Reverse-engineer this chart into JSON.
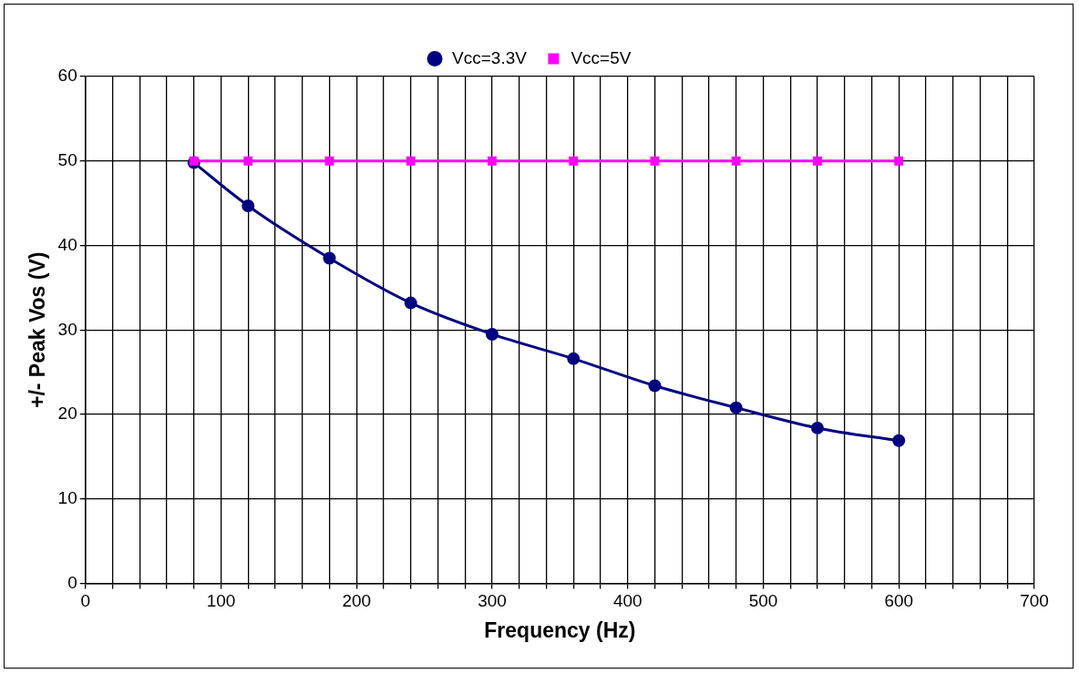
{
  "chart_data": {
    "type": "line",
    "xlabel": "Frequency (Hz)",
    "ylabel": "+/- Peak Vos (V)",
    "x": [
      80,
      120,
      180,
      240,
      300,
      360,
      420,
      480,
      540,
      600
    ],
    "series": [
      {
        "name": "Vcc=3.3V",
        "color": "#000080",
        "marker": "circle",
        "values": [
          49.8,
          44.7,
          38.5,
          33.2,
          29.5,
          26.6,
          23.4,
          20.8,
          18.4,
          16.9
        ]
      },
      {
        "name": "Vcc=5V",
        "color": "#ff00ff",
        "marker": "square",
        "values": [
          50,
          50,
          50,
          50,
          50,
          50,
          50,
          50,
          50,
          50
        ]
      }
    ],
    "xlim": [
      0,
      700
    ],
    "xticks": [
      0,
      {
        "value": 20,
        "label": null
      },
      {
        "value": 40,
        "label": null
      },
      {
        "value": 60,
        "label": null
      },
      {
        "value": 80,
        "label": null
      },
      100,
      {
        "value": 120,
        "label": null
      },
      {
        "value": 140,
        "label": null
      },
      {
        "value": 160,
        "label": null
      },
      {
        "value": 180,
        "label": null
      },
      200,
      {
        "value": 220,
        "label": null
      },
      {
        "value": 240,
        "label": null
      },
      {
        "value": 260,
        "label": null
      },
      {
        "value": 280,
        "label": null
      },
      300,
      {
        "value": 320,
        "label": null
      },
      {
        "value": 340,
        "label": null
      },
      {
        "value": 360,
        "label": null
      },
      {
        "value": 380,
        "label": null
      },
      400,
      {
        "value": 420,
        "label": null
      },
      {
        "value": 440,
        "label": null
      },
      {
        "value": 460,
        "label": null
      },
      {
        "value": 480,
        "label": null
      },
      500,
      {
        "value": 520,
        "label": null
      },
      {
        "value": 540,
        "label": null
      },
      {
        "value": 560,
        "label": null
      },
      {
        "value": 580,
        "label": null
      },
      600,
      {
        "value": 620,
        "label": null
      },
      {
        "value": 640,
        "label": null
      },
      {
        "value": 660,
        "label": null
      },
      {
        "value": 680,
        "label": null
      },
      700
    ],
    "ylim": [
      0,
      60
    ],
    "yticks": [
      0,
      10,
      20,
      30,
      40,
      50,
      60
    ],
    "grid": true,
    "legend": "top"
  }
}
